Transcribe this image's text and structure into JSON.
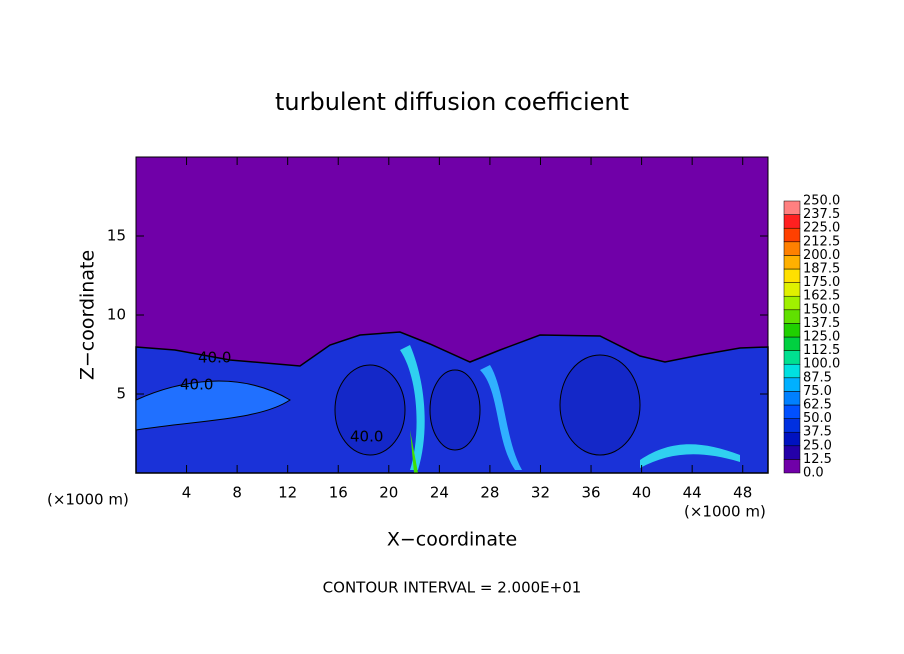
{
  "chart_data": {
    "type": "contour",
    "title": "turbulent diffusion coefficient",
    "xlabel": "X−coordinate",
    "ylabel": "Z−coordinate",
    "xunit": "(×1000 m)",
    "yunit": "(×1000 m)",
    "annotation": "CONTOUR INTERVAL = 2.000E+01",
    "contour_labels": [
      "40.0",
      "40.0",
      "40.0"
    ],
    "xlim": [
      0,
      50
    ],
    "ylim": [
      0,
      20
    ],
    "xticks": [
      4,
      8,
      12,
      16,
      20,
      24,
      28,
      32,
      36,
      40,
      44,
      48
    ],
    "yticks": [
      5,
      10,
      15
    ],
    "levels": [
      {
        "value": 0,
        "label": "0.0"
      },
      12.5,
      {
        "value": 25,
        "label": "25.0"
      },
      37.5,
      {
        "value": 50,
        "label": "50.0"
      },
      62.5,
      {
        "value": 75,
        "label": "75.0"
      },
      87.5,
      {
        "value": 100,
        "label": "100.0"
      },
      112.5,
      {
        "value": 125,
        "label": "125.0"
      },
      137.5,
      {
        "value": 150,
        "label": "150.0"
      },
      162.5,
      {
        "value": 175,
        "label": "175.0"
      },
      187.5,
      {
        "value": 200,
        "label": "200.0"
      },
      212.5,
      {
        "value": 225,
        "label": "225.0"
      },
      237.5,
      {
        "value": 250,
        "label": "250.0"
      }
    ],
    "colors": [
      "#7000a8",
      "#2400a8",
      "#0012c0",
      "#0030e0",
      "#0050ff",
      "#0080ff",
      "#00b0ff",
      "#00e0e0",
      "#00e090",
      "#00d040",
      "#20d000",
      "#60e000",
      "#a0f000",
      "#e0f000",
      "#ffe000",
      "#ffb000",
      "#ff8000",
      "#ff4000",
      "#ff2020",
      "#ff8080"
    ]
  }
}
